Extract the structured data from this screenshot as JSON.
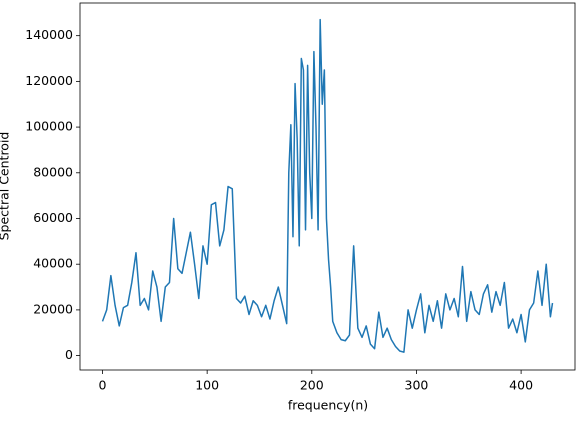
{
  "chart_data": {
    "type": "line",
    "xlabel": "frequency(n)",
    "ylabel": "Spectral Centroid",
    "x": [
      0,
      4,
      8,
      12,
      16,
      20,
      24,
      28,
      32,
      36,
      40,
      44,
      48,
      52,
      56,
      60,
      64,
      68,
      72,
      76,
      80,
      84,
      88,
      92,
      96,
      100,
      104,
      108,
      112,
      116,
      120,
      124,
      128,
      132,
      136,
      140,
      144,
      148,
      152,
      156,
      160,
      164,
      168,
      172,
      176,
      178,
      180,
      182,
      184,
      186,
      188,
      190,
      192,
      194,
      196,
      198,
      200,
      202,
      204,
      206,
      208,
      210,
      212,
      214,
      216,
      218,
      220,
      224,
      228,
      232,
      236,
      240,
      244,
      248,
      252,
      256,
      260,
      264,
      268,
      272,
      276,
      280,
      284,
      288,
      292,
      296,
      300,
      304,
      308,
      312,
      316,
      320,
      324,
      328,
      332,
      336,
      340,
      344,
      348,
      352,
      356,
      360,
      364,
      368,
      372,
      376,
      380,
      384,
      388,
      392,
      396,
      400,
      404,
      408,
      412,
      416,
      420,
      424,
      428,
      430
    ],
    "values": [
      15000,
      20000,
      35000,
      22000,
      13000,
      21000,
      22000,
      32000,
      45000,
      22000,
      25000,
      20000,
      37000,
      30000,
      15000,
      30000,
      32000,
      60000,
      38000,
      36000,
      45000,
      54000,
      40000,
      25000,
      48000,
      40000,
      66000,
      67000,
      48000,
      55000,
      74000,
      73000,
      25000,
      23000,
      26000,
      18000,
      24000,
      22000,
      17000,
      22000,
      16000,
      24000,
      30000,
      22000,
      14000,
      80000,
      101000,
      52000,
      119000,
      95000,
      48000,
      130000,
      125000,
      55000,
      127000,
      80000,
      60000,
      133000,
      100000,
      55000,
      147000,
      110000,
      125000,
      60000,
      42000,
      30000,
      15000,
      10000,
      7000,
      6500,
      9000,
      48000,
      12000,
      8000,
      13000,
      5000,
      3000,
      19000,
      8000,
      12000,
      7000,
      4000,
      2000,
      1500,
      20000,
      12000,
      20000,
      27000,
      10000,
      22000,
      15000,
      24000,
      12000,
      27000,
      20000,
      25000,
      17000,
      39000,
      15000,
      28000,
      20000,
      18000,
      27000,
      31000,
      19000,
      28000,
      22000,
      32000,
      12000,
      16000,
      10000,
      18000,
      6000,
      20000,
      23000,
      37000,
      22000,
      40000,
      17000,
      23000
    ],
    "color": "#1f77b4",
    "xlim": [
      -21.5,
      451.5
    ],
    "ylim": [
      -6300,
      154300
    ],
    "xticks": [
      0,
      100,
      200,
      300,
      400
    ],
    "yticks": [
      0,
      20000,
      40000,
      60000,
      80000,
      100000,
      120000,
      140000
    ],
    "grid": false
  }
}
